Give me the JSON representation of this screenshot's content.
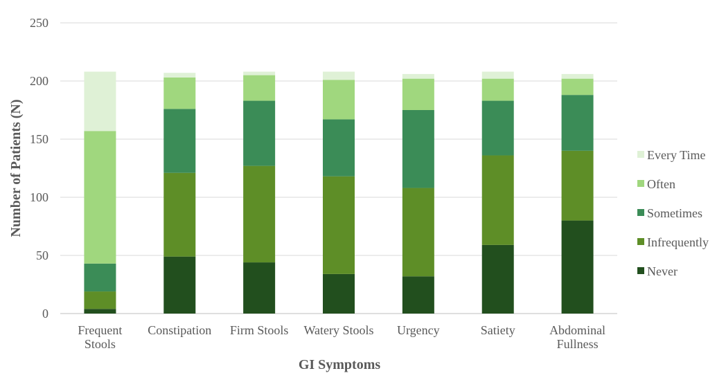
{
  "chart_data": {
    "type": "bar",
    "stacked": true,
    "title": "",
    "xlabel": "GI Symptoms",
    "ylabel": "Number of Patients (N)",
    "ylim": [
      0,
      250
    ],
    "yticks": [
      0,
      50,
      100,
      150,
      200,
      250
    ],
    "grid": true,
    "legend_position": "right",
    "categories": [
      [
        "Frequent",
        "Stools"
      ],
      [
        "Constipation"
      ],
      [
        "Firm Stools"
      ],
      [
        "Watery Stools"
      ],
      [
        "Urgency"
      ],
      [
        "Satiety"
      ],
      [
        "Abdominal",
        "Fullness"
      ]
    ],
    "series": [
      {
        "name": "Never",
        "color": "#224f1e",
        "values": [
          4,
          49,
          44,
          34,
          32,
          59,
          80
        ]
      },
      {
        "name": "Infrequently",
        "color": "#5e8e27",
        "values": [
          15,
          72,
          83,
          84,
          76,
          77,
          60
        ]
      },
      {
        "name": "Sometimes",
        "color": "#3b8c57",
        "values": [
          24,
          55,
          56,
          49,
          67,
          47,
          48
        ]
      },
      {
        "name": "Often",
        "color": "#a0d77e",
        "values": [
          114,
          27,
          22,
          34,
          27,
          19,
          14
        ]
      },
      {
        "name": "Every Time",
        "color": "#dff1d6",
        "values": [
          51,
          4,
          3,
          7,
          4,
          6,
          4
        ]
      }
    ]
  }
}
